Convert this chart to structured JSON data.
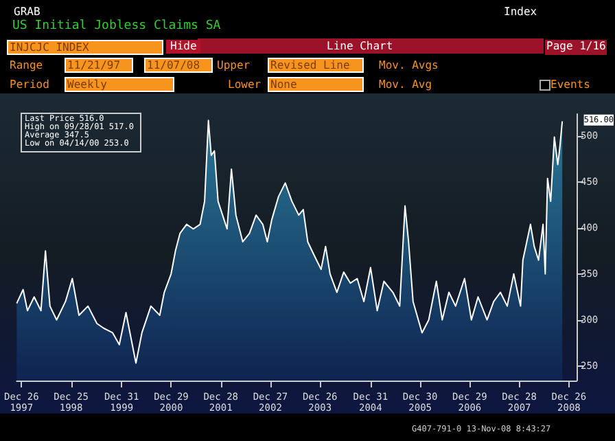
{
  "chart_data": {
    "type": "area",
    "title": "US Initial Jobless Claims SA",
    "marker": "none",
    "line_style": "solid",
    "xlim": [
      "1997-11-21",
      "2009-02-20"
    ],
    "xticks": [
      {
        "value": "1997-12-26",
        "label": "Dec 26\n1997"
      },
      {
        "value": "1998-12-25",
        "label": "Dec 25\n1998"
      },
      {
        "value": "1999-12-31",
        "label": "Dec 31\n1999"
      },
      {
        "value": "2000-12-29",
        "label": "Dec 29\n2000"
      },
      {
        "value": "2001-12-28",
        "label": "Dec 28\n2001"
      },
      {
        "value": "2002-12-27",
        "label": "Dec 27\n2002"
      },
      {
        "value": "2003-12-26",
        "label": "Dec 26\n2003"
      },
      {
        "value": "2004-12-31",
        "label": "Dec 31\n2004"
      },
      {
        "value": "2005-12-30",
        "label": "Dec 30\n2005"
      },
      {
        "value": "2006-12-29",
        "label": "Dec 29\n2006"
      },
      {
        "value": "2007-12-28",
        "label": "Dec 28\n2007"
      },
      {
        "value": "2008-12-26",
        "label": "Dec 26\n2008"
      }
    ],
    "ylim": [
      234,
      524
    ],
    "yticks": [
      250,
      300,
      350,
      400,
      450,
      500
    ],
    "annotations": [
      "GRAB",
      "Index",
      "INJCJC INDEX",
      "Hide",
      "Line Chart",
      "Page 1/16",
      "Range",
      "11/21/97",
      "Upper",
      "Revised Line",
      "Mov. Avgs",
      "Period",
      "Weekly",
      "Lower",
      "None",
      "Mov. Avg",
      "Events",
      "11/07/08",
      "Last Price 516.0",
      "High on 09/28/01 517.0",
      "Average 347.5",
      "Low on 04/14/00 253.0",
      {
        "text": "516.00",
        "x": "2008-11-07",
        "y": 516
      },
      "G407-791-0 13-Nov-08 8:43:27"
    ],
    "series": [
      {
        "color": "#2a7896",
        "x": [
          "1997-11-21",
          "1998-01-07",
          "1998-02-08",
          "1998-03-29",
          "1998-05-18",
          "1998-06-20",
          "1998-07-23",
          "1998-09-10",
          "1998-11-14",
          "1999-01-03",
          "1999-02-21",
          "1999-04-28",
          "1999-07-03",
          "1999-08-21",
          "1999-10-26",
          "1999-12-14",
          "2000-02-01",
          "2000-04-14",
          "2000-05-28",
          "2000-08-02",
          "2000-10-06",
          "2000-11-08",
          "2000-12-28",
          "2001-01-29",
          "2001-03-03",
          "2001-04-21",
          "2001-06-09",
          "2001-07-29",
          "2001-08-31",
          "2001-09-28",
          "2001-10-19",
          "2001-11-11",
          "2001-12-08",
          "2002-01-10",
          "2002-02-12",
          "2002-03-16",
          "2002-04-18",
          "2002-06-07",
          "2002-07-26",
          "2002-09-13",
          "2002-11-01",
          "2002-12-04",
          "2003-01-06",
          "2003-02-24",
          "2003-04-15",
          "2003-06-03",
          "2003-07-23",
          "2003-08-25",
          "2003-09-27",
          "2003-11-14",
          "2004-01-03",
          "2004-02-05",
          "2004-03-09",
          "2004-04-28",
          "2004-06-17",
          "2004-08-05",
          "2004-09-24",
          "2004-11-12",
          "2004-12-31",
          "2005-02-18",
          "2005-04-08",
          "2005-06-13",
          "2005-08-02",
          "2005-09-10",
          "2005-10-06",
          "2005-11-08",
          "2006-01-13",
          "2006-03-03",
          "2006-04-28",
          "2006-06-10",
          "2006-07-29",
          "2006-09-16",
          "2006-11-21",
          "2007-01-10",
          "2007-02-28",
          "2007-05-05",
          "2007-06-23",
          "2007-08-11",
          "2007-09-30",
          "2007-11-17",
          "2008-01-06",
          "2008-01-23",
          "2008-03-19",
          "2008-04-15",
          "2008-05-17",
          "2008-06-19",
          "2008-07-05",
          "2008-07-22",
          "2008-08-14",
          "2008-09-10",
          "2008-10-05",
          "2008-10-19",
          "2008-11-07"
        ],
        "values": [
          318,
          333,
          310,
          325,
          310,
          375,
          315,
          300,
          320,
          345,
          305,
          315,
          296,
          291,
          286,
          273,
          308,
          253,
          286,
          315,
          305,
          330,
          350,
          375,
          394,
          404,
          399,
          404,
          429,
          517,
          479,
          484,
          429,
          414,
          399,
          464,
          414,
          385,
          394,
          414,
          404,
          385,
          409,
          434,
          449,
          429,
          414,
          420,
          385,
          370,
          355,
          380,
          350,
          330,
          352,
          340,
          345,
          320,
          357,
          310,
          342,
          330,
          315,
          424,
          385,
          320,
          286,
          300,
          342,
          300,
          330,
          315,
          345,
          300,
          325,
          300,
          320,
          330,
          315,
          350,
          315,
          365,
          404,
          380,
          365,
          404,
          350,
          454,
          429,
          499,
          469,
          486,
          516
        ]
      }
    ]
  }
}
